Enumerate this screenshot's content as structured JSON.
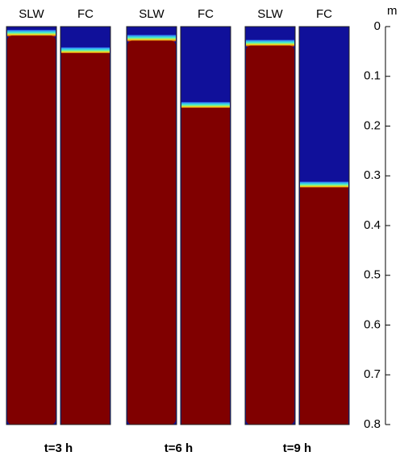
{
  "chart_data": {
    "type": "panels",
    "axis_label": "m",
    "ylim": [
      0,
      0.8
    ],
    "yticks": [
      0,
      0.1,
      0.2,
      0.3,
      0.4,
      0.5,
      0.6,
      0.7,
      0.8
    ],
    "groups": [
      {
        "label": "t=3 h",
        "panels": [
          {
            "name": "SLW",
            "front": 0.015
          },
          {
            "name": "FC",
            "front": 0.05
          }
        ]
      },
      {
        "label": "t=6 h",
        "panels": [
          {
            "name": "SLW",
            "front": 0.025
          },
          {
            "name": "FC",
            "front": 0.16
          }
        ]
      },
      {
        "label": "t=9 h",
        "panels": [
          {
            "name": "SLW",
            "front": 0.035
          },
          {
            "name": "FC",
            "front": 0.32
          }
        ]
      }
    ],
    "colors": {
      "upper": "#10109a",
      "lower": "#800000",
      "front": "#40e0c0"
    }
  }
}
